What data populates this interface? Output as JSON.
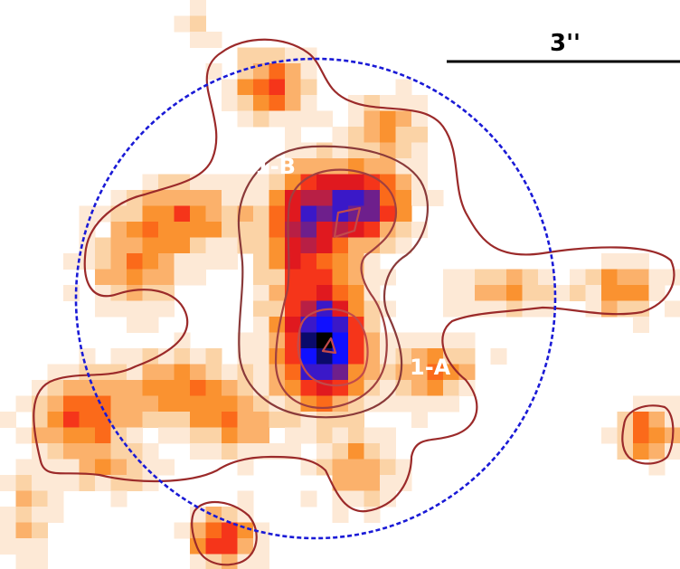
{
  "labels": {
    "scale_bar": "3''",
    "component_b": "1-B",
    "component_a": "1-A"
  },
  "colors": {
    "background": "#ffffff",
    "contour": "#9b2a2a",
    "aperture_circle": "#1a1ad6",
    "scale_bar": "#000000",
    "label_text": "#ffffff"
  },
  "colormap": [
    "#fde9d6",
    "#fbd3a6",
    "#fbb16b",
    "#fa9230",
    "#fb6a1a",
    "#f5351a",
    "#e0191f",
    "#b81f45",
    "#6e1f8c",
    "#3a18c8",
    "#1010ff",
    "#0a0a6a",
    "#000000"
  ]
}
